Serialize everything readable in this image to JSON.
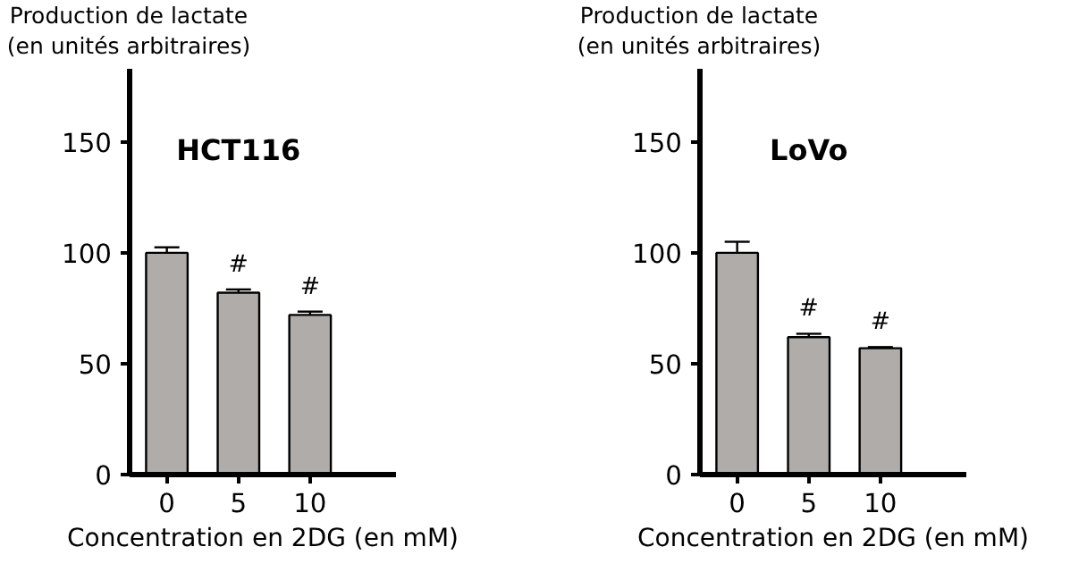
{
  "chart_data": [
    {
      "type": "bar",
      "title": "HCT116",
      "ylabel": "Production de lactate\n(en unités arbitraires)",
      "xlabel": "Concentration en 2DG (en mM)",
      "categories": [
        "0",
        "5",
        "10"
      ],
      "values": [
        100,
        82,
        72
      ],
      "errors": [
        2.5,
        1.5,
        1.5
      ],
      "value_labels": [
        null,
        "#",
        "#"
      ],
      "color": "#b0acaa",
      "ylim": [
        0,
        183
      ],
      "yticks": [
        0,
        50,
        100,
        150
      ],
      "grid": false
    },
    {
      "type": "bar",
      "title": "LoVo",
      "ylabel": "Production de lactate\n(en unités arbitraires)",
      "xlabel": "Concentration en 2DG (en mM)",
      "categories": [
        "0",
        "5",
        "10"
      ],
      "values": [
        100,
        62,
        57
      ],
      "errors": [
        5,
        1.5,
        0.5
      ],
      "value_labels": [
        null,
        "#",
        "#"
      ],
      "color": "#b0acaa",
      "ylim": [
        0,
        183
      ],
      "yticks": [
        0,
        50,
        100,
        150
      ],
      "grid": false
    }
  ]
}
